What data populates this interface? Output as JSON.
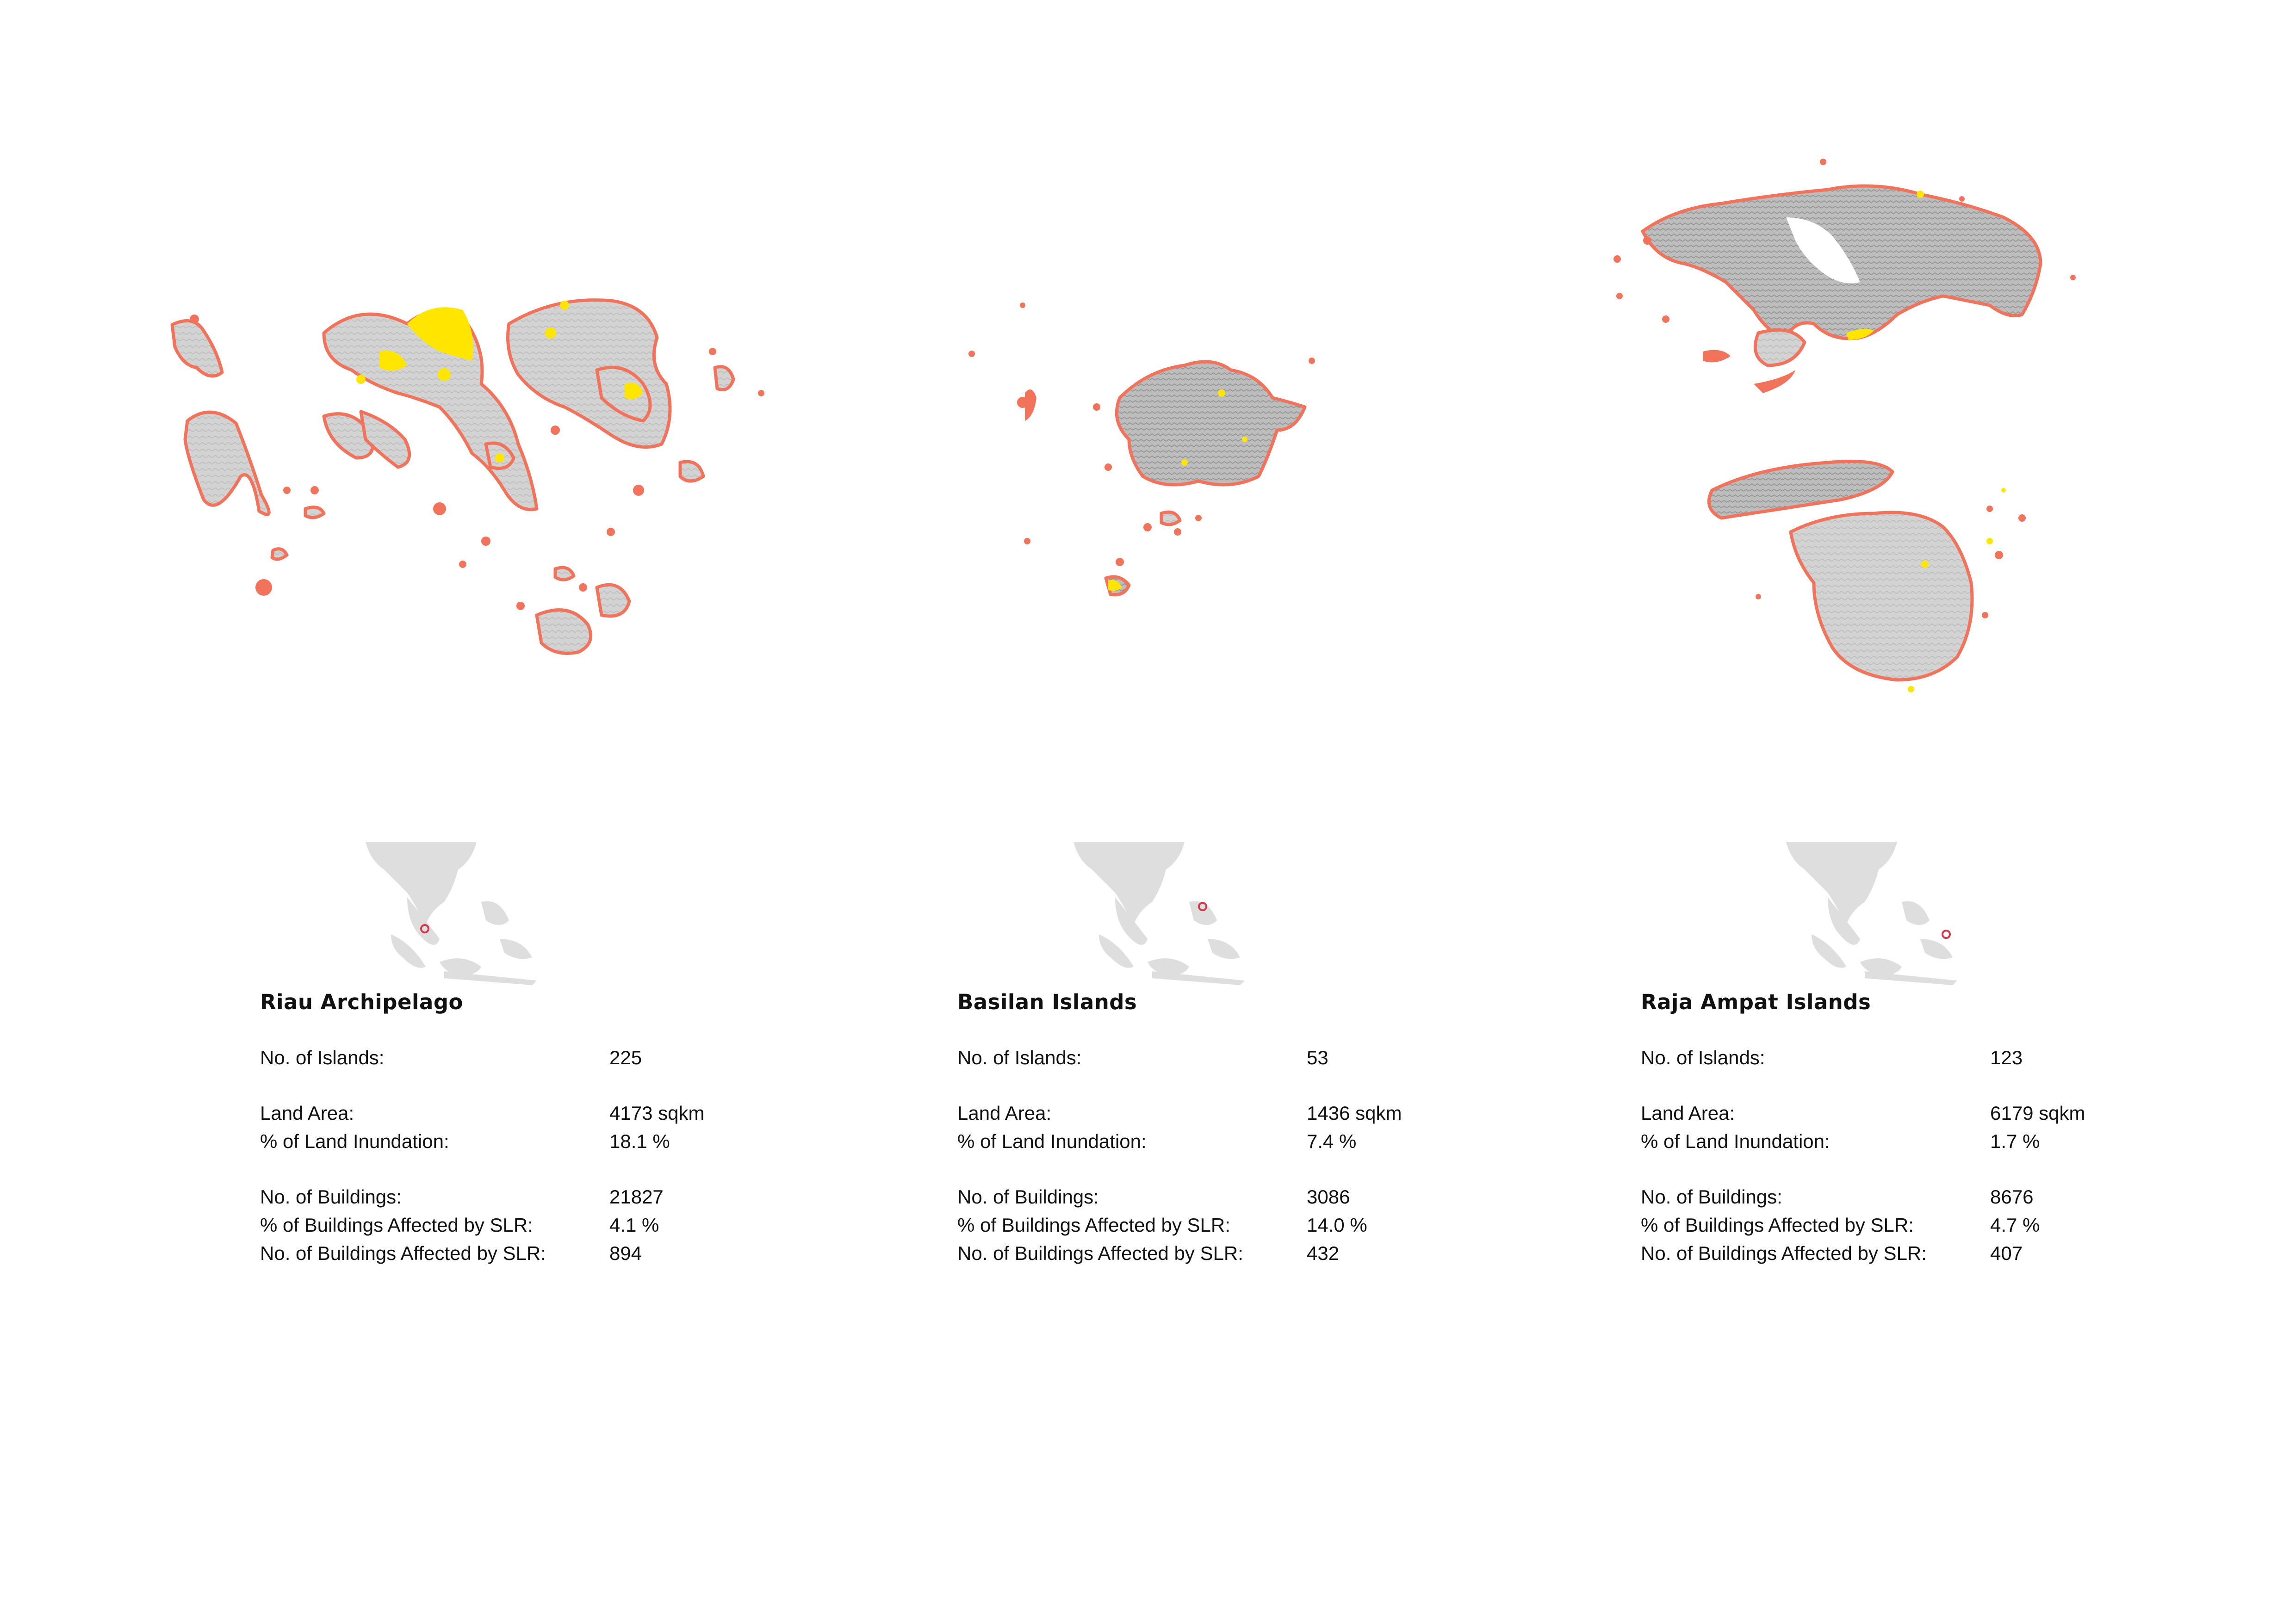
{
  "colors": {
    "land_fill": "#d3d3d3",
    "coast_outline": "#f2735c",
    "inundation": "#ffe600",
    "locator_land": "#dedede",
    "locator_marker": "#d6364a"
  },
  "legend_symbols": [],
  "panels": [
    {
      "name": "Riau Archipelago",
      "islands_label": "No. of Islands:",
      "islands_value": "225",
      "land_area_label": "Land Area:",
      "land_area_value": "4173 sqkm",
      "land_inundation_label": "% of Land Inundation:",
      "land_inundation_value": "18.1 %",
      "buildings_label": "No. of Buildings:",
      "buildings_value": "21827",
      "buildings_affected_pct_label": "% of Buildings Affected by SLR:",
      "buildings_affected_pct_value": "4.1 %",
      "buildings_affected_count_label": "No. of Buildings Affected by SLR:",
      "buildings_affected_count_value": "894"
    },
    {
      "name": "Basilan Islands",
      "islands_label": "No. of Islands:",
      "islands_value": "53",
      "land_area_label": "Land Area:",
      "land_area_value": "1436 sqkm",
      "land_inundation_label": "% of Land Inundation:",
      "land_inundation_value": "7.4 %",
      "buildings_label": "No. of Buildings:",
      "buildings_value": "3086",
      "buildings_affected_pct_label": "% of Buildings Affected by SLR:",
      "buildings_affected_pct_value": "14.0 %",
      "buildings_affected_count_label": "No. of Buildings Affected by SLR:",
      "buildings_affected_count_value": "432"
    },
    {
      "name": "Raja Ampat Islands",
      "islands_label": "No. of Islands:",
      "islands_value": "123",
      "land_area_label": "Land Area:",
      "land_area_value": "6179 sqkm",
      "land_inundation_label": "% of Land Inundation:",
      "land_inundation_value": "1.7 %",
      "buildings_label": "No. of Buildings:",
      "buildings_value": "8676",
      "buildings_affected_pct_label": "% of Buildings Affected by SLR:",
      "buildings_affected_pct_value": "4.7 %",
      "buildings_affected_count_label": "No. of Buildings Affected by SLR:",
      "buildings_affected_count_value": "407"
    }
  ]
}
